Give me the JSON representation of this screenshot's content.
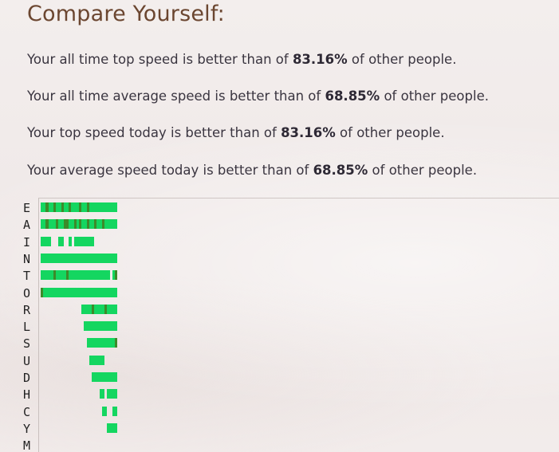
{
  "title": "Compare Yourself:",
  "stats": [
    {
      "prefix": "Your all time top speed is better than of ",
      "value": "83.16%",
      "suffix": " of other people."
    },
    {
      "prefix": "Your all time average speed is better than of ",
      "value": "68.85%",
      "suffix": " of other people."
    },
    {
      "prefix": "Your top speed today is better than of ",
      "value": "83.16%",
      "suffix": " of other people."
    },
    {
      "prefix": "Your average speed today is better than of ",
      "value": "68.85%",
      "suffix": " of other people."
    }
  ],
  "colors": {
    "bright": "#14d660",
    "dark": "#3d8a2a",
    "mid": "#2dbb4f"
  },
  "letters": [
    {
      "label": "E",
      "pattern": "BBDBBDBBDBBDBBBDBBDBBBBBBBBBBB"
    },
    {
      "label": "A",
      "pattern": "BBDBBBDBBDDBBDBDBBDBBDBBDBBBBB"
    },
    {
      "label": "I",
      "pattern": "BBBB___BB__B_BBBBBBBB_________"
    },
    {
      "label": "N",
      "pattern": "BBBBBBBBBBBBBBBBBBBBBBBBBBBBBB"
    },
    {
      "label": "T",
      "pattern": "BBBBBDBBBBDBBBBBBBBBBBBBBBB_BD"
    },
    {
      "label": "O",
      "pattern": "DBBBBBBBBBBBBBBBBBBBBBBBBBBBBB"
    },
    {
      "label": "R",
      "pattern": "________________BBBBDBBBBDBBBB"
    },
    {
      "label": "L",
      "pattern": "_________________BBBBBBBBBBBBB"
    },
    {
      "label": "S",
      "pattern": "__________________BBBBBBBBBBBD"
    },
    {
      "label": "U",
      "pattern": "___________________BBBBBB_____"
    },
    {
      "label": "D",
      "pattern": "____________________BBBBBBBBBB"
    },
    {
      "label": "H",
      "pattern": "_______________________BB_BBBB"
    },
    {
      "label": "C",
      "pattern": "________________________BB__BB"
    },
    {
      "label": "Y",
      "pattern": "__________________________BBBB"
    },
    {
      "label": "M",
      "pattern": "______________________________"
    }
  ]
}
